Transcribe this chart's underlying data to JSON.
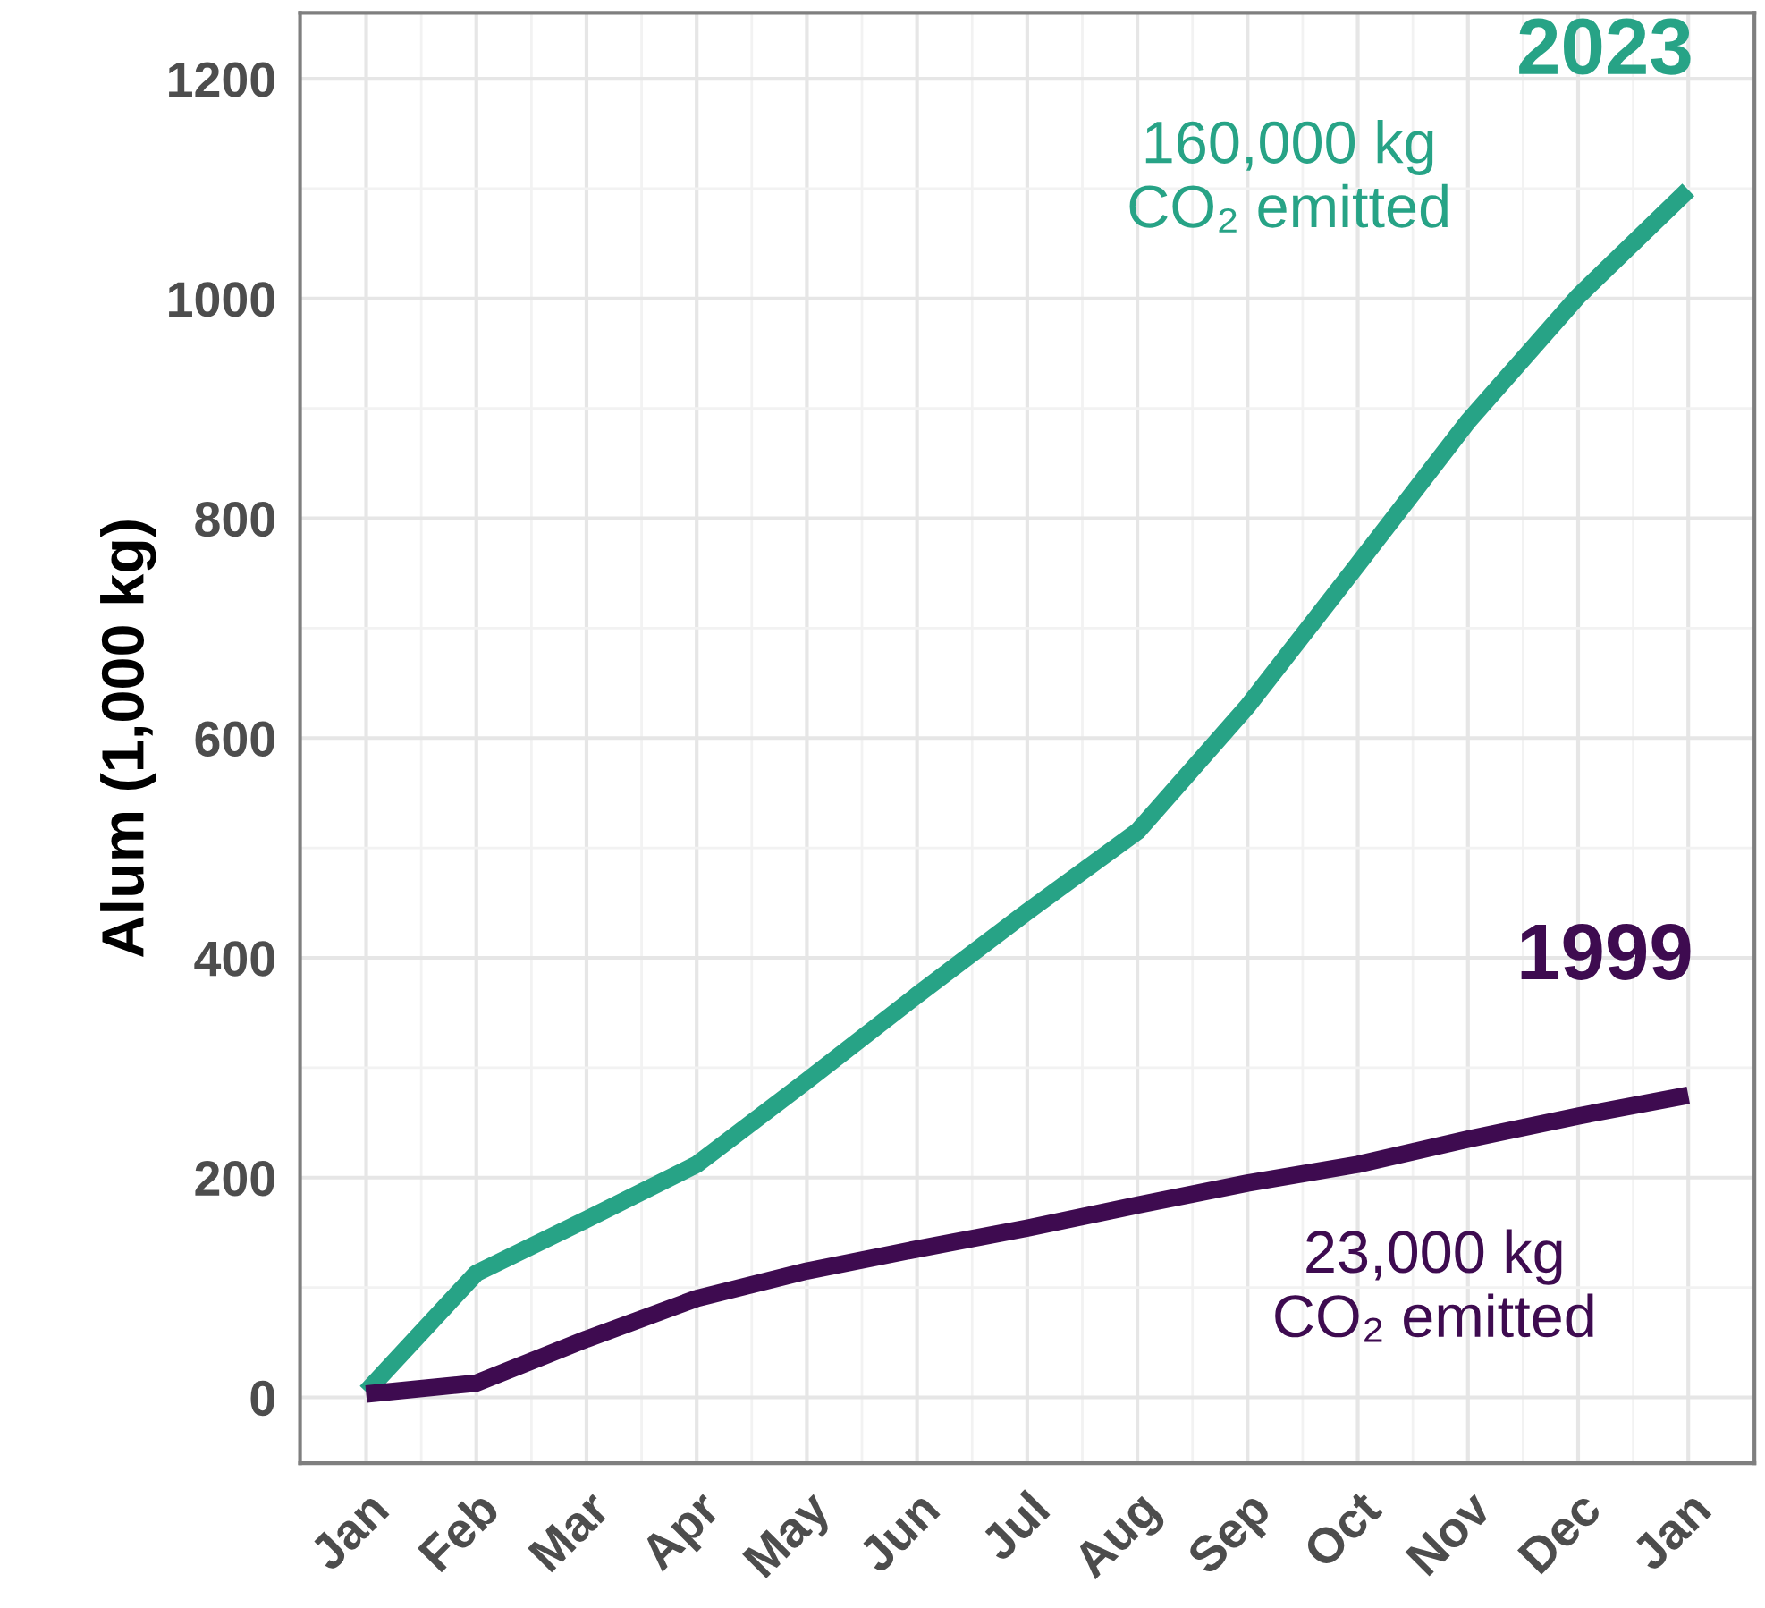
{
  "chart_data": {
    "type": "line",
    "ylabel": "Alum (1,000 kg)",
    "categories": [
      "Jan",
      "Feb",
      "Mar",
      "Apr",
      "May",
      "Jun",
      "Jul",
      "Aug",
      "Sep",
      "Oct",
      "Nov",
      "Dec",
      "Jan"
    ],
    "ylim": [
      -60,
      1260
    ],
    "yticks": [
      0,
      200,
      400,
      600,
      800,
      1000,
      1200
    ],
    "grid": true,
    "legend": false,
    "marker": "none",
    "line_style": "solid",
    "series": [
      {
        "name": "2023",
        "color": "#27a386",
        "values": [
          5,
          113,
          162,
          212,
          288,
          366,
          442,
          515,
          629,
          758,
          888,
          1002,
          1099
        ]
      },
      {
        "name": "1999",
        "color": "#3e0b50",
        "values": [
          3,
          13,
          53,
          90,
          115,
          135,
          154,
          175,
          195,
          212,
          235,
          256,
          275
        ]
      }
    ],
    "annotations": [
      "160,000 kg\nCO₂ emitted",
      "23,000 kg\nCO₂ emitted"
    ]
  }
}
